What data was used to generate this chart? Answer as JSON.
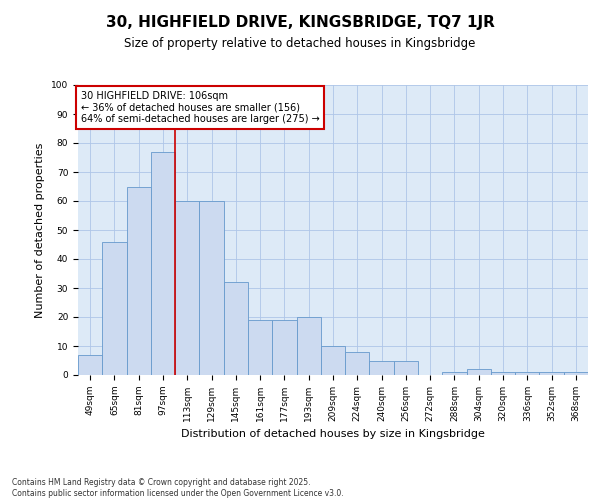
{
  "title_line1": "30, HIGHFIELD DRIVE, KINGSBRIDGE, TQ7 1JR",
  "title_line2": "Size of property relative to detached houses in Kingsbridge",
  "xlabel": "Distribution of detached houses by size in Kingsbridge",
  "ylabel": "Number of detached properties",
  "categories": [
    "49sqm",
    "65sqm",
    "81sqm",
    "97sqm",
    "113sqm",
    "129sqm",
    "145sqm",
    "161sqm",
    "177sqm",
    "193sqm",
    "209sqm",
    "224sqm",
    "240sqm",
    "256sqm",
    "272sqm",
    "288sqm",
    "304sqm",
    "320sqm",
    "336sqm",
    "352sqm",
    "368sqm"
  ],
  "values": [
    7,
    46,
    65,
    77,
    60,
    60,
    32,
    19,
    19,
    20,
    10,
    8,
    5,
    5,
    0,
    1,
    2,
    1,
    1,
    1,
    1
  ],
  "bar_color": "#ccdaf0",
  "bar_edge_color": "#6699cc",
  "grid_color": "#aec6e8",
  "bg_color": "#ddeaf7",
  "vline_pos": 3.5,
  "vline_color": "#cc0000",
  "ylim": [
    0,
    100
  ],
  "yticks": [
    0,
    10,
    20,
    30,
    40,
    50,
    60,
    70,
    80,
    90,
    100
  ],
  "annotation_title": "30 HIGHFIELD DRIVE: 106sqm",
  "annotation_line1": "← 36% of detached houses are smaller (156)",
  "annotation_line2": "64% of semi-detached houses are larger (275) →",
  "annotation_edge_color": "#cc0000",
  "footer_line1": "Contains HM Land Registry data © Crown copyright and database right 2025.",
  "footer_line2": "Contains public sector information licensed under the Open Government Licence v3.0.",
  "title_fontsize": 11,
  "subtitle_fontsize": 8.5,
  "tick_fontsize": 6.5,
  "label_fontsize": 8,
  "annotation_fontsize": 7,
  "footer_fontsize": 5.5
}
